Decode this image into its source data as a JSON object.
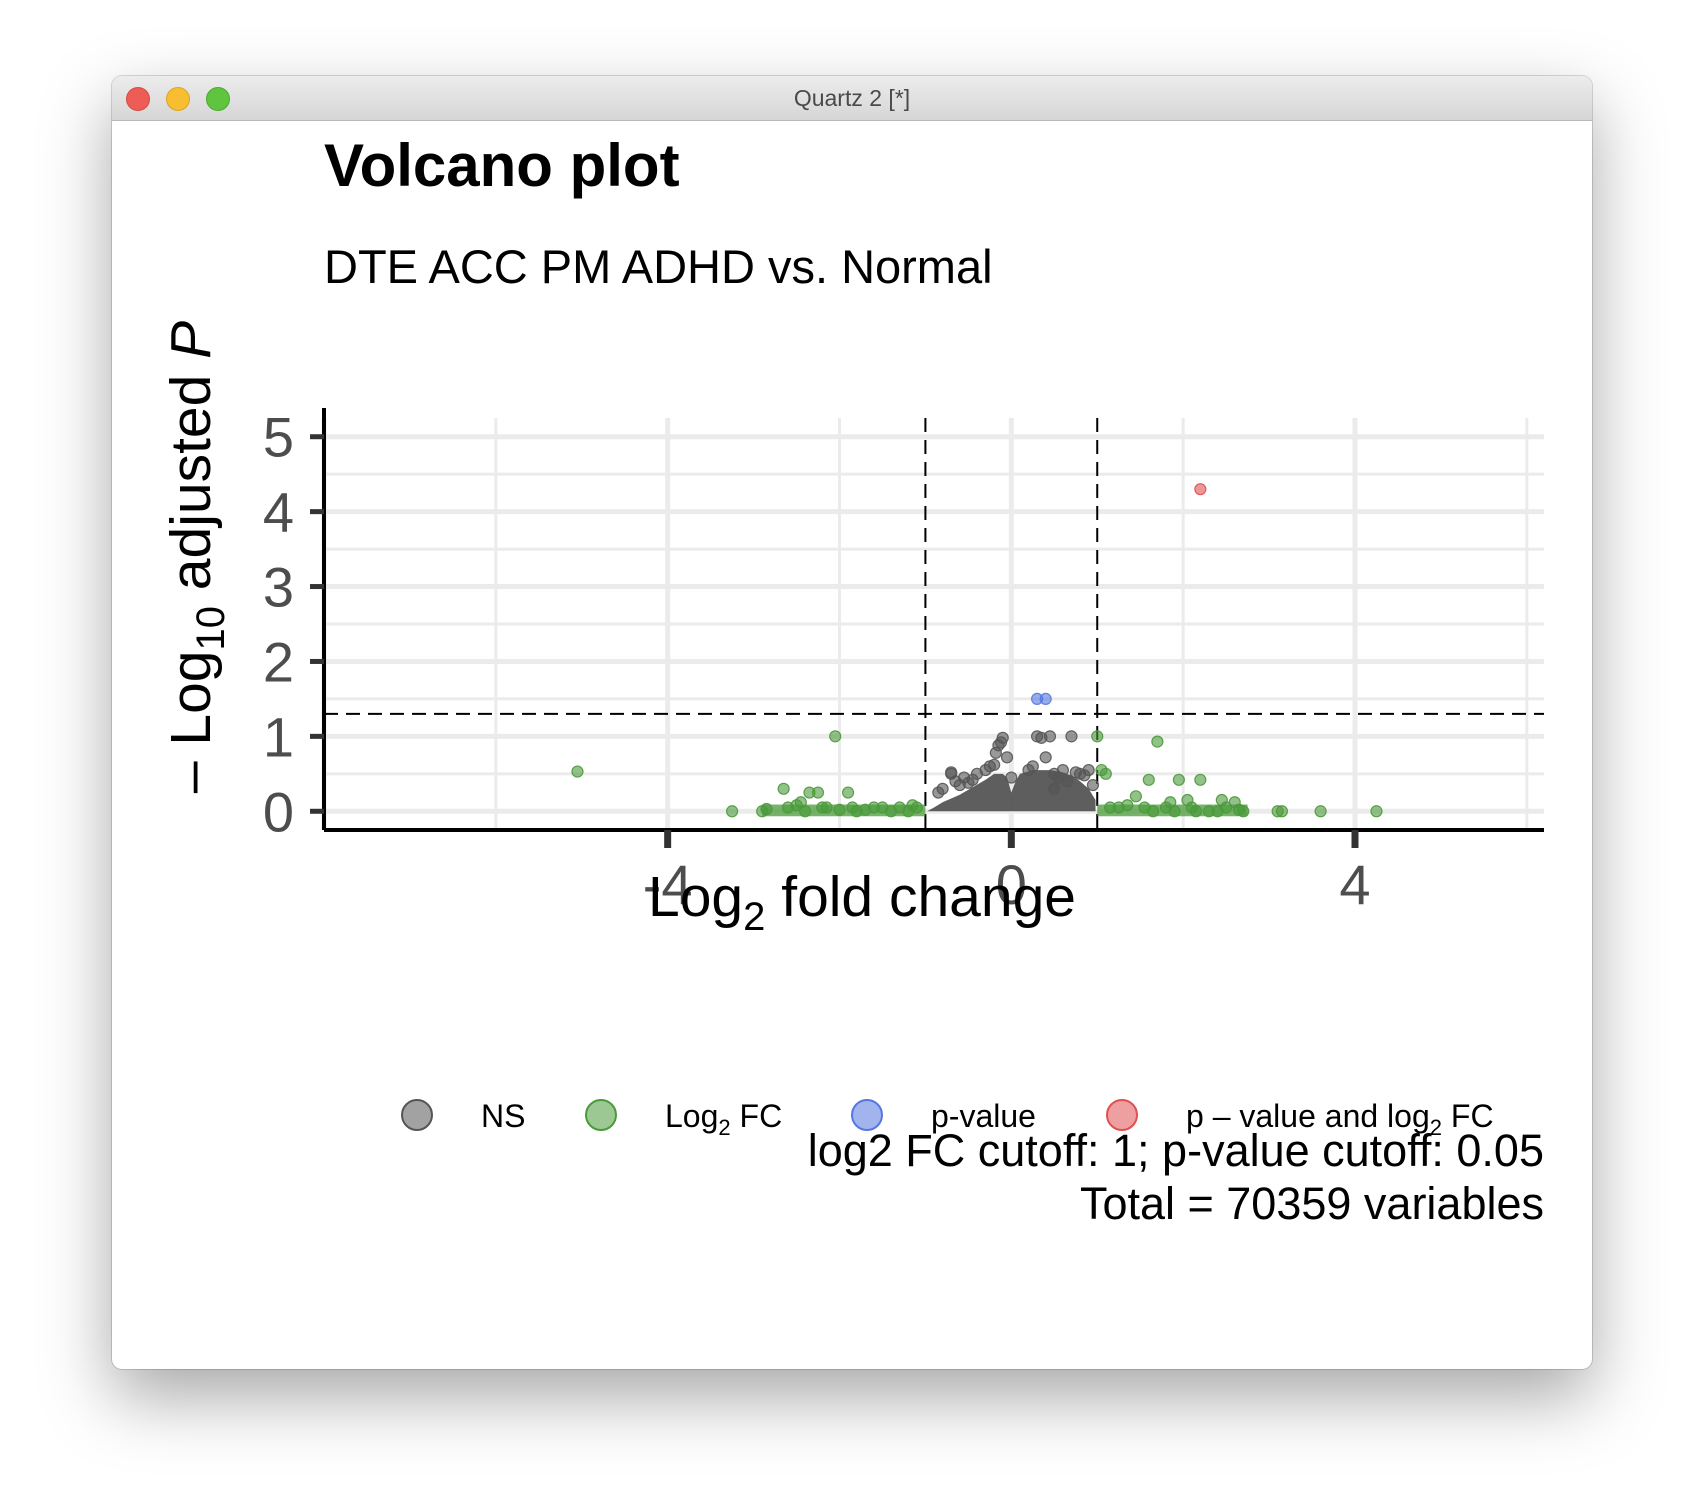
{
  "window": {
    "title": "Quartz 2 [*]"
  },
  "chart_data": {
    "type": "scatter",
    "title": "Volcano plot",
    "subtitle": "DTE ACC PM ADHD vs. Normal",
    "xlabel": {
      "base": "Log",
      "sub": "2",
      "rest": " fold change"
    },
    "ylabel": {
      "prefix": "– Log",
      "sub": "10",
      "mid": " adjusted ",
      "italic": "P"
    },
    "xlim": [
      -8.0,
      6.2
    ],
    "ylim": [
      -0.25,
      5.25
    ],
    "x_ticks": [
      -4,
      0,
      4
    ],
    "x_tick_labels": [
      "-4",
      "0",
      "4"
    ],
    "y_ticks": [
      0,
      1,
      2,
      3,
      4,
      5
    ],
    "y_tick_labels": [
      "0",
      "1",
      "2",
      "3",
      "4",
      "5"
    ],
    "grid": true,
    "cutoff_lines": {
      "x": [
        -1,
        1
      ],
      "y": 1.3
    },
    "legend": {
      "position": "bottom",
      "items": [
        {
          "key": "NS",
          "label": "NS",
          "color": "#555555"
        },
        {
          "key": "fc",
          "label": "Log",
          "sub": "2",
          "rest": " FC",
          "color": "#4a9a3a"
        },
        {
          "key": "p",
          "label": "p-value",
          "color": "#5577e0"
        },
        {
          "key": "pfc",
          "label": "p – value and log",
          "sub": "2",
          "rest": " FC",
          "color": "#e05050"
        }
      ]
    },
    "caption": [
      "log2 FC cutoff: 1; p-value cutoff: 0.05",
      "Total = 70359 variables"
    ],
    "series": [
      {
        "name": "NS",
        "color": "#555555",
        "points": [
          [
            -0.7,
            0.52
          ],
          [
            -0.7,
            0.5
          ],
          [
            -0.65,
            0.4
          ],
          [
            -0.6,
            0.35
          ],
          [
            -0.55,
            0.45
          ],
          [
            -0.5,
            0.38
          ],
          [
            -0.45,
            0.42
          ],
          [
            -0.4,
            0.5
          ],
          [
            -0.3,
            0.55
          ],
          [
            -0.25,
            0.6
          ],
          [
            -0.2,
            0.62
          ],
          [
            -0.18,
            0.78
          ],
          [
            -0.15,
            0.88
          ],
          [
            -0.12,
            0.92
          ],
          [
            -0.1,
            0.98
          ],
          [
            -0.05,
            0.72
          ],
          [
            0.0,
            0.45
          ],
          [
            0.2,
            0.55
          ],
          [
            0.25,
            0.6
          ],
          [
            0.3,
            1.0
          ],
          [
            0.35,
            0.98
          ],
          [
            0.4,
            0.72
          ],
          [
            0.45,
            1.0
          ],
          [
            0.5,
            0.5
          ],
          [
            0.55,
            0.45
          ],
          [
            0.7,
            1.0
          ],
          [
            0.75,
            0.52
          ],
          [
            0.8,
            0.5
          ],
          [
            0.85,
            0.48
          ],
          [
            0.9,
            0.55
          ],
          [
            0.95,
            0.35
          ],
          [
            0.6,
            0.55
          ],
          [
            0.65,
            0.4
          ],
          [
            -0.8,
            0.3
          ],
          [
            -0.85,
            0.25
          ],
          [
            0.5,
            0.3
          ]
        ]
      },
      {
        "name": "Log2 FC",
        "color": "#4a9a3a",
        "points": [
          [
            -5.05,
            0.53
          ],
          [
            -2.05,
            1.0
          ],
          [
            -3.25,
            0.0
          ],
          [
            -2.9,
            0.0
          ],
          [
            -2.85,
            0.03
          ],
          [
            -2.65,
            0.3
          ],
          [
            -2.6,
            0.05
          ],
          [
            -2.5,
            0.08
          ],
          [
            -2.45,
            0.12
          ],
          [
            -2.4,
            0.0
          ],
          [
            -2.35,
            0.25
          ],
          [
            -2.25,
            0.25
          ],
          [
            -2.2,
            0.05
          ],
          [
            -2.15,
            0.05
          ],
          [
            -2.0,
            0.02
          ],
          [
            -1.9,
            0.25
          ],
          [
            -1.85,
            0.05
          ],
          [
            -1.8,
            0.0
          ],
          [
            -1.7,
            0.02
          ],
          [
            -1.6,
            0.05
          ],
          [
            -1.5,
            0.05
          ],
          [
            -1.4,
            0.0
          ],
          [
            -1.3,
            0.05
          ],
          [
            -1.2,
            0.0
          ],
          [
            -1.15,
            0.08
          ],
          [
            -1.1,
            0.05
          ],
          [
            1.0,
            1.0
          ],
          [
            1.05,
            0.55
          ],
          [
            1.1,
            0.5
          ],
          [
            1.15,
            0.05
          ],
          [
            1.25,
            0.05
          ],
          [
            1.35,
            0.08
          ],
          [
            1.45,
            0.2
          ],
          [
            1.55,
            0.05
          ],
          [
            1.6,
            0.42
          ],
          [
            1.65,
            0.0
          ],
          [
            1.7,
            0.93
          ],
          [
            1.8,
            0.05
          ],
          [
            1.85,
            0.12
          ],
          [
            1.9,
            0.0
          ],
          [
            1.95,
            0.42
          ],
          [
            2.05,
            0.15
          ],
          [
            2.1,
            0.05
          ],
          [
            2.15,
            0.0
          ],
          [
            2.2,
            0.42
          ],
          [
            2.3,
            0.0
          ],
          [
            2.4,
            0.0
          ],
          [
            2.45,
            0.15
          ],
          [
            2.5,
            0.05
          ],
          [
            2.6,
            0.12
          ],
          [
            2.65,
            0.02
          ],
          [
            2.7,
            0.0
          ],
          [
            3.1,
            0.0
          ],
          [
            3.15,
            0.0
          ],
          [
            3.6,
            0.0
          ],
          [
            4.25,
            0.0
          ]
        ]
      },
      {
        "name": "p-value",
        "color": "#5577e0",
        "points": [
          [
            0.3,
            1.5
          ],
          [
            0.4,
            1.5
          ]
        ]
      },
      {
        "name": "p – value and log2 FC",
        "color": "#e05050",
        "points": [
          [
            2.2,
            4.3
          ]
        ]
      }
    ],
    "ns_blob": [
      [
        -0.98,
        0.0
      ],
      [
        -0.9,
        0.05
      ],
      [
        -0.8,
        0.12
      ],
      [
        -0.6,
        0.22
      ],
      [
        -0.45,
        0.32
      ],
      [
        -0.3,
        0.42
      ],
      [
        -0.2,
        0.5
      ],
      [
        -0.1,
        0.5
      ],
      [
        -0.05,
        0.45
      ],
      [
        0.0,
        0.25
      ],
      [
        0.05,
        0.4
      ],
      [
        0.1,
        0.5
      ],
      [
        0.25,
        0.55
      ],
      [
        0.45,
        0.55
      ],
      [
        0.6,
        0.52
      ],
      [
        0.7,
        0.48
      ],
      [
        0.8,
        0.4
      ],
      [
        0.9,
        0.3
      ],
      [
        0.98,
        0.15
      ],
      [
        0.98,
        0.0
      ]
    ]
  }
}
